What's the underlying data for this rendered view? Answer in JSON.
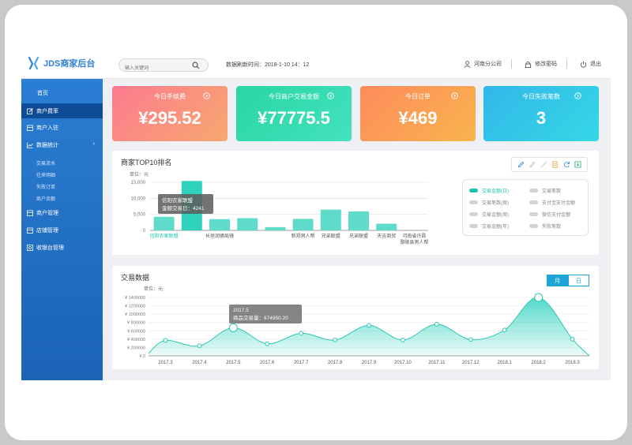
{
  "header": {
    "logo_text": "JDS商家后台",
    "search_placeholder": "输入关键词",
    "refresh_label": "数据刷新时间：2018-1-10 14：12",
    "branch": "河南分公司",
    "change_password": "修改密码",
    "logout": "退出"
  },
  "sidebar": {
    "items": [
      {
        "label": "首页"
      },
      {
        "label": "商户费率"
      },
      {
        "label": "商户入驻"
      },
      {
        "label": "数据统计"
      },
      {
        "label": "交易流水"
      },
      {
        "label": "往来明细"
      },
      {
        "label": "失败订单"
      },
      {
        "label": "商户余额"
      },
      {
        "label": "商户管理"
      },
      {
        "label": "店铺管理"
      },
      {
        "label": "收银台管理"
      }
    ]
  },
  "cards": [
    {
      "title": "今日手续费",
      "value": "¥295.52"
    },
    {
      "title": "今日商户交易金额",
      "value": "¥77775.5"
    },
    {
      "title": "今日订单",
      "value": "¥469"
    },
    {
      "title": "今日失败笔数",
      "value": "3"
    }
  ],
  "top10": {
    "title": "商家TOP10排名",
    "unit": "单位：元",
    "tooltip_title": "信阳农家联盟",
    "tooltip_value": "金额交易日：4241",
    "legend": [
      {
        "label": "交易金额(日)",
        "active": true
      },
      {
        "label": "交易笔数",
        "active": false
      },
      {
        "label": "交易笔数(周)",
        "active": false
      },
      {
        "label": "支付宝支付金额",
        "active": false
      },
      {
        "label": "交易金额(周)",
        "active": false
      },
      {
        "label": "微信支付金额",
        "active": false
      },
      {
        "label": "交易金额(年)",
        "active": false
      },
      {
        "label": "失败笔数",
        "active": false
      }
    ]
  },
  "trade": {
    "title": "交易数据",
    "unit": "单位：元",
    "toggle_month": "月",
    "toggle_day": "日",
    "tooltip_title": "2017.5",
    "tooltip_value": "商品交易量：674950.20"
  },
  "chart_data": [
    {
      "type": "bar",
      "title": "商家TOP10排名",
      "ylim": [
        0,
        15000
      ],
      "yticks": [
        "15,000",
        "10,000",
        "5,000",
        "0"
      ],
      "categories": [
        "信阳农家联盟",
        "",
        "长垣润德局镜",
        "",
        "",
        "新郑男人帮",
        "兄弟联盟",
        "兄弟联盟",
        "天吉商贸",
        "河南省许昌 鄢陵县男人帮"
      ],
      "values": [
        4241,
        15400,
        3500,
        3800,
        1000,
        3600,
        6500,
        5900,
        2100,
        0
      ],
      "highlight_color": "#2fd3bd",
      "color": "#5edcc9"
    },
    {
      "type": "area",
      "title": "交易数据",
      "ylim": [
        0,
        1400000
      ],
      "yticks": [
        "¥ 1400000",
        "¥ 1200000",
        "¥ 1000000",
        "¥ 800000",
        "¥ 600000",
        "¥ 400000",
        "¥ 200000",
        "¥ 0"
      ],
      "x": [
        "2017.3",
        "2017.4",
        "2017.5",
        "2017.6",
        "2017.7",
        "2017.8",
        "2017.9",
        "2017.10",
        "2017.11",
        "2017.12",
        "2018.1",
        "2018.2",
        "2018.3"
      ],
      "values": [
        370000,
        240000,
        674950,
        290000,
        540000,
        380000,
        730000,
        380000,
        760000,
        390000,
        620000,
        1400000,
        400000
      ],
      "color": "#34d3c0"
    }
  ]
}
